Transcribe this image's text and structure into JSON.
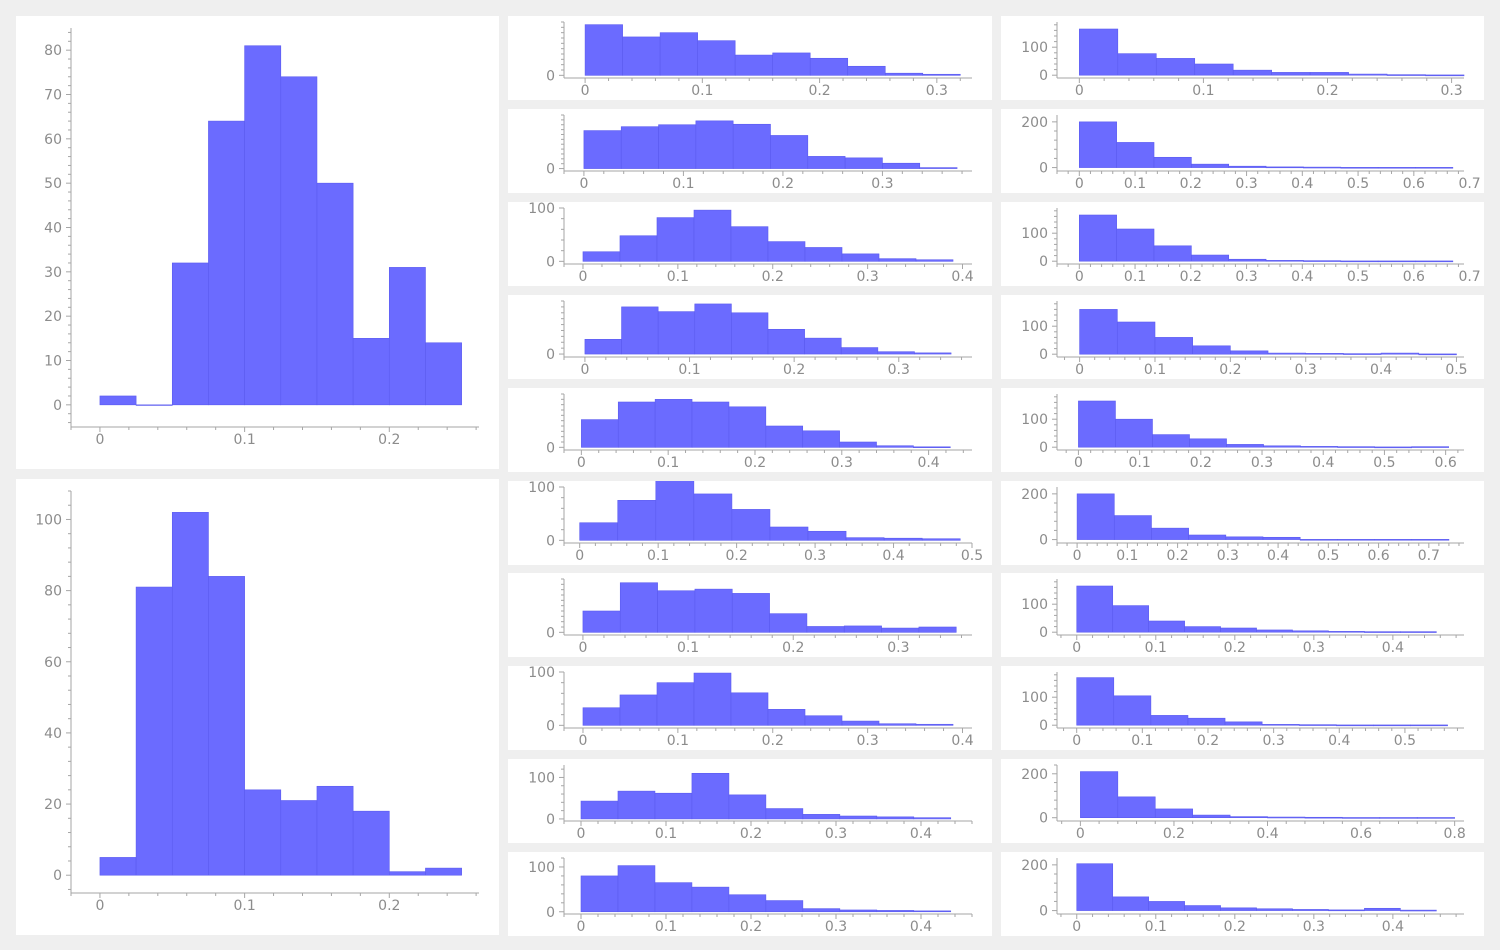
{
  "colors": {
    "background": "#efefef",
    "panel": "#ffffff",
    "bar_fill": "#6b6bff",
    "bar_stroke": "#5b5bef",
    "axis": "#a6a6a6",
    "tick_label": "#8c8c8c"
  },
  "chart_data": [
    {
      "id": "big-top",
      "type": "bar",
      "bin_width": 0.025,
      "xlim": [
        -0.02,
        0.262
      ],
      "ylim": [
        -5,
        85
      ],
      "x_ticks": [
        {
          "v": 0,
          "l": "0"
        },
        {
          "v": 0.1,
          "l": "0.1"
        },
        {
          "v": 0.2,
          "l": "0.2"
        }
      ],
      "y_ticks": [
        {
          "v": 0,
          "l": "0"
        },
        {
          "v": 10,
          "l": "10"
        },
        {
          "v": 20,
          "l": "20"
        },
        {
          "v": 30,
          "l": "30"
        },
        {
          "v": 40,
          "l": "40"
        },
        {
          "v": 50,
          "l": "50"
        },
        {
          "v": 60,
          "l": "60"
        },
        {
          "v": 70,
          "l": "70"
        },
        {
          "v": 80,
          "l": "80"
        }
      ],
      "values": [
        2,
        0,
        32,
        64,
        81,
        74,
        50,
        15,
        31,
        14
      ]
    },
    {
      "id": "big-bottom",
      "type": "bar",
      "bin_width": 0.025,
      "xlim": [
        -0.02,
        0.262
      ],
      "ylim": [
        -5,
        108
      ],
      "x_ticks": [
        {
          "v": 0,
          "l": "0"
        },
        {
          "v": 0.1,
          "l": "0.1"
        },
        {
          "v": 0.2,
          "l": "0.2"
        }
      ],
      "y_ticks": [
        {
          "v": 0,
          "l": "0"
        },
        {
          "v": 20,
          "l": "20"
        },
        {
          "v": 40,
          "l": "40"
        },
        {
          "v": 60,
          "l": "60"
        },
        {
          "v": 80,
          "l": "80"
        },
        {
          "v": 100,
          "l": "100"
        }
      ],
      "values": [
        5,
        81,
        102,
        84,
        24,
        21,
        25,
        18,
        1,
        2
      ]
    },
    {
      "id": "mid-1",
      "type": "bar",
      "bin_width": 0.032,
      "xlim": [
        -0.018,
        0.33
      ],
      "ylim": [
        -5,
        100
      ],
      "x_ticks": [
        {
          "v": 0,
          "l": "0"
        },
        {
          "v": 0.1,
          "l": "0.1"
        },
        {
          "v": 0.2,
          "l": "0.2"
        },
        {
          "v": 0.3,
          "l": "0.3"
        }
      ],
      "y_ticks": [
        {
          "v": 0,
          "l": "0"
        }
      ],
      "values": [
        95,
        72,
        80,
        65,
        38,
        42,
        32,
        17,
        4,
        2
      ]
    },
    {
      "id": "mid-2",
      "type": "bar",
      "bin_width": 0.0375,
      "xlim": [
        -0.02,
        0.39
      ],
      "ylim": [
        -5,
        110
      ],
      "x_ticks": [
        {
          "v": 0,
          "l": "0"
        },
        {
          "v": 0.1,
          "l": "0.1"
        },
        {
          "v": 0.2,
          "l": "0.2"
        },
        {
          "v": 0.3,
          "l": "0.3"
        }
      ],
      "y_ticks": [
        {
          "v": 0,
          "l": "0"
        }
      ],
      "values": [
        78,
        86,
        90,
        98,
        91,
        68,
        25,
        22,
        11,
        2
      ]
    },
    {
      "id": "mid-3",
      "type": "bar",
      "bin_width": 0.039,
      "xlim": [
        -0.02,
        0.41
      ],
      "ylim": [
        -5,
        100
      ],
      "x_ticks": [
        {
          "v": 0,
          "l": "0"
        },
        {
          "v": 0.1,
          "l": "0.1"
        },
        {
          "v": 0.2,
          "l": "0.2"
        },
        {
          "v": 0.3,
          "l": "0.3"
        },
        {
          "v": 0.4,
          "l": "0.4"
        }
      ],
      "y_ticks": [
        {
          "v": 0,
          "l": "0"
        },
        {
          "v": 100,
          "l": "100"
        }
      ],
      "values": [
        18,
        48,
        82,
        96,
        65,
        37,
        26,
        14,
        5,
        3
      ]
    },
    {
      "id": "mid-4",
      "type": "bar",
      "bin_width": 0.035,
      "xlim": [
        -0.02,
        0.37
      ],
      "ylim": [
        -5,
        90
      ],
      "x_ticks": [
        {
          "v": 0,
          "l": "0"
        },
        {
          "v": 0.1,
          "l": "0.1"
        },
        {
          "v": 0.2,
          "l": "0.2"
        },
        {
          "v": 0.3,
          "l": "0.3"
        }
      ],
      "y_ticks": [
        {
          "v": 0,
          "l": "0"
        }
      ],
      "values": [
        25,
        80,
        72,
        85,
        70,
        42,
        27,
        11,
        4,
        2
      ]
    },
    {
      "id": "mid-5",
      "type": "bar",
      "bin_width": 0.0425,
      "xlim": [
        -0.02,
        0.45
      ],
      "ylim": [
        -5,
        100
      ],
      "x_ticks": [
        {
          "v": 0,
          "l": "0"
        },
        {
          "v": 0.1,
          "l": "0.1"
        },
        {
          "v": 0.2,
          "l": "0.2"
        },
        {
          "v": 0.3,
          "l": "0.3"
        },
        {
          "v": 0.4,
          "l": "0.4"
        }
      ],
      "y_ticks": [
        {
          "v": 0,
          "l": "0"
        }
      ],
      "values": [
        52,
        85,
        90,
        85,
        76,
        40,
        31,
        10,
        3,
        1
      ]
    },
    {
      "id": "mid-6",
      "type": "bar",
      "bin_width": 0.0485,
      "xlim": [
        -0.02,
        0.5
      ],
      "ylim": [
        -5,
        100
      ],
      "x_ticks": [
        {
          "v": 0,
          "l": "0"
        },
        {
          "v": 0.1,
          "l": "0.1"
        },
        {
          "v": 0.2,
          "l": "0.2"
        },
        {
          "v": 0.3,
          "l": "0.3"
        },
        {
          "v": 0.4,
          "l": "0.4"
        },
        {
          "v": 0.5,
          "l": "0.5"
        }
      ],
      "y_ticks": [
        {
          "v": 0,
          "l": "0"
        },
        {
          "v": 100,
          "l": "100"
        }
      ],
      "values": [
        33,
        75,
        112,
        87,
        58,
        25,
        17,
        5,
        4,
        3
      ]
    },
    {
      "id": "mid-7",
      "type": "bar",
      "bin_width": 0.0355,
      "xlim": [
        -0.018,
        0.37
      ],
      "ylim": [
        -5,
        100
      ],
      "x_ticks": [
        {
          "v": 0,
          "l": "0"
        },
        {
          "v": 0.1,
          "l": "0.1"
        },
        {
          "v": 0.2,
          "l": "0.2"
        },
        {
          "v": 0.3,
          "l": "0.3"
        }
      ],
      "y_ticks": [
        {
          "v": 0,
          "l": "0"
        }
      ],
      "values": [
        40,
        93,
        78,
        81,
        73,
        35,
        11,
        12,
        8,
        10
      ]
    },
    {
      "id": "mid-8",
      "type": "bar",
      "bin_width": 0.039,
      "xlim": [
        -0.02,
        0.41
      ],
      "ylim": [
        -5,
        100
      ],
      "x_ticks": [
        {
          "v": 0,
          "l": "0"
        },
        {
          "v": 0.1,
          "l": "0.1"
        },
        {
          "v": 0.2,
          "l": "0.2"
        },
        {
          "v": 0.3,
          "l": "0.3"
        },
        {
          "v": 0.4,
          "l": "0.4"
        }
      ],
      "y_ticks": [
        {
          "v": 0,
          "l": "0"
        },
        {
          "v": 100,
          "l": "100"
        }
      ],
      "values": [
        33,
        57,
        80,
        98,
        61,
        30,
        18,
        8,
        3,
        2
      ]
    },
    {
      "id": "mid-9",
      "type": "bar",
      "bin_width": 0.0435,
      "xlim": [
        -0.02,
        0.46
      ],
      "ylim": [
        -5,
        130
      ],
      "x_ticks": [
        {
          "v": 0,
          "l": "0"
        },
        {
          "v": 0.1,
          "l": "0.1"
        },
        {
          "v": 0.2,
          "l": "0.2"
        },
        {
          "v": 0.3,
          "l": "0.3"
        },
        {
          "v": 0.4,
          "l": "0.4"
        }
      ],
      "y_ticks": [
        {
          "v": 0,
          "l": "0"
        },
        {
          "v": 100,
          "l": "100"
        }
      ],
      "values": [
        43,
        67,
        62,
        110,
        58,
        25,
        11,
        7,
        5,
        3
      ]
    },
    {
      "id": "mid-10",
      "type": "bar",
      "bin_width": 0.0435,
      "xlim": [
        -0.02,
        0.46
      ],
      "ylim": [
        -5,
        120
      ],
      "x_ticks": [
        {
          "v": 0,
          "l": "0"
        },
        {
          "v": 0.1,
          "l": "0.1"
        },
        {
          "v": 0.2,
          "l": "0.2"
        },
        {
          "v": 0.3,
          "l": "0.3"
        },
        {
          "v": 0.4,
          "l": "0.4"
        }
      ],
      "y_ticks": [
        {
          "v": 0,
          "l": "0"
        },
        {
          "v": 100,
          "l": "100"
        }
      ],
      "values": [
        80,
        103,
        65,
        55,
        38,
        25,
        7,
        4,
        3,
        2
      ]
    },
    {
      "id": "right-1",
      "type": "bar",
      "bin_width": 0.031,
      "xlim": [
        -0.018,
        0.31
      ],
      "ylim": [
        -10,
        190
      ],
      "x_ticks": [
        {
          "v": 0,
          "l": "0"
        },
        {
          "v": 0.1,
          "l": "0.1"
        },
        {
          "v": 0.2,
          "l": "0.2"
        },
        {
          "v": 0.3,
          "l": "0.3"
        }
      ],
      "y_ticks": [
        {
          "v": 0,
          "l": "0"
        },
        {
          "v": 100,
          "l": "100"
        }
      ],
      "values": [
        165,
        77,
        60,
        40,
        18,
        10,
        10,
        4,
        2,
        1
      ]
    },
    {
      "id": "right-2",
      "type": "bar",
      "bin_width": 0.067,
      "xlim": [
        -0.04,
        0.69
      ],
      "ylim": [
        -15,
        230
      ],
      "x_ticks": [
        {
          "v": 0,
          "l": "0"
        },
        {
          "v": 0.1,
          "l": "0.1"
        },
        {
          "v": 0.2,
          "l": "0.2"
        },
        {
          "v": 0.3,
          "l": "0.3"
        },
        {
          "v": 0.4,
          "l": "0.4"
        },
        {
          "v": 0.5,
          "l": "0.5"
        },
        {
          "v": 0.6,
          "l": "0.6"
        },
        {
          "v": 0.7,
          "l": "0.7"
        }
      ],
      "y_ticks": [
        {
          "v": 0,
          "l": "0"
        },
        {
          "v": 200,
          "l": "200"
        }
      ],
      "values": [
        200,
        110,
        45,
        15,
        6,
        3,
        2,
        1,
        1,
        1
      ]
    },
    {
      "id": "right-3",
      "type": "bar",
      "bin_width": 0.067,
      "xlim": [
        -0.04,
        0.69
      ],
      "ylim": [
        -10,
        190
      ],
      "x_ticks": [
        {
          "v": 0,
          "l": "0"
        },
        {
          "v": 0.1,
          "l": "0.1"
        },
        {
          "v": 0.2,
          "l": "0.2"
        },
        {
          "v": 0.3,
          "l": "0.3"
        },
        {
          "v": 0.4,
          "l": "0.4"
        },
        {
          "v": 0.5,
          "l": "0.5"
        },
        {
          "v": 0.6,
          "l": "0.6"
        },
        {
          "v": 0.7,
          "l": "0.7"
        }
      ],
      "y_ticks": [
        {
          "v": 0,
          "l": "0"
        },
        {
          "v": 100,
          "l": "100"
        }
      ],
      "values": [
        165,
        115,
        55,
        22,
        7,
        3,
        2,
        1,
        1,
        1
      ]
    },
    {
      "id": "right-4",
      "type": "bar",
      "bin_width": 0.05,
      "xlim": [
        -0.03,
        0.51
      ],
      "ylim": [
        -10,
        190
      ],
      "x_ticks": [
        {
          "v": 0,
          "l": "0"
        },
        {
          "v": 0.1,
          "l": "0.1"
        },
        {
          "v": 0.2,
          "l": "0.2"
        },
        {
          "v": 0.3,
          "l": "0.3"
        },
        {
          "v": 0.4,
          "l": "0.4"
        },
        {
          "v": 0.5,
          "l": "0.5"
        }
      ],
      "y_ticks": [
        {
          "v": 0,
          "l": "0"
        },
        {
          "v": 100,
          "l": "100"
        }
      ],
      "values": [
        160,
        115,
        60,
        30,
        12,
        4,
        3,
        2,
        4,
        1
      ]
    },
    {
      "id": "right-5",
      "type": "bar",
      "bin_width": 0.0605,
      "xlim": [
        -0.035,
        0.63
      ],
      "ylim": [
        -10,
        190
      ],
      "x_ticks": [
        {
          "v": 0,
          "l": "0"
        },
        {
          "v": 0.1,
          "l": "0.1"
        },
        {
          "v": 0.2,
          "l": "0.2"
        },
        {
          "v": 0.3,
          "l": "0.3"
        },
        {
          "v": 0.4,
          "l": "0.4"
        },
        {
          "v": 0.5,
          "l": "0.5"
        },
        {
          "v": 0.6,
          "l": "0.6"
        }
      ],
      "y_ticks": [
        {
          "v": 0,
          "l": "0"
        },
        {
          "v": 100,
          "l": "100"
        }
      ],
      "values": [
        165,
        100,
        45,
        30,
        10,
        5,
        3,
        2,
        1,
        2
      ]
    },
    {
      "id": "right-6",
      "type": "bar",
      "bin_width": 0.074,
      "xlim": [
        -0.04,
        0.77
      ],
      "ylim": [
        -15,
        230
      ],
      "x_ticks": [
        {
          "v": 0,
          "l": "0"
        },
        {
          "v": 0.1,
          "l": "0.1"
        },
        {
          "v": 0.2,
          "l": "0.2"
        },
        {
          "v": 0.3,
          "l": "0.3"
        },
        {
          "v": 0.4,
          "l": "0.4"
        },
        {
          "v": 0.5,
          "l": "0.5"
        },
        {
          "v": 0.6,
          "l": "0.6"
        },
        {
          "v": 0.7,
          "l": "0.7"
        }
      ],
      "y_ticks": [
        {
          "v": 0,
          "l": "0"
        },
        {
          "v": 200,
          "l": "200"
        }
      ],
      "values": [
        200,
        105,
        50,
        20,
        12,
        10,
        1,
        1,
        1,
        1
      ]
    },
    {
      "id": "right-7",
      "type": "bar",
      "bin_width": 0.0455,
      "xlim": [
        -0.025,
        0.49
      ],
      "ylim": [
        -10,
        190
      ],
      "x_ticks": [
        {
          "v": 0,
          "l": "0"
        },
        {
          "v": 0.1,
          "l": "0.1"
        },
        {
          "v": 0.2,
          "l": "0.2"
        },
        {
          "v": 0.3,
          "l": "0.3"
        },
        {
          "v": 0.4,
          "l": "0.4"
        }
      ],
      "y_ticks": [
        {
          "v": 0,
          "l": "0"
        },
        {
          "v": 100,
          "l": "100"
        }
      ],
      "values": [
        165,
        95,
        40,
        20,
        15,
        8,
        5,
        3,
        2,
        2
      ]
    },
    {
      "id": "right-8",
      "type": "bar",
      "bin_width": 0.0565,
      "xlim": [
        -0.03,
        0.59
      ],
      "ylim": [
        -10,
        190
      ],
      "x_ticks": [
        {
          "v": 0,
          "l": "0"
        },
        {
          "v": 0.1,
          "l": "0.1"
        },
        {
          "v": 0.2,
          "l": "0.2"
        },
        {
          "v": 0.3,
          "l": "0.3"
        },
        {
          "v": 0.4,
          "l": "0.4"
        },
        {
          "v": 0.5,
          "l": "0.5"
        }
      ],
      "y_ticks": [
        {
          "v": 0,
          "l": "0"
        },
        {
          "v": 100,
          "l": "100"
        }
      ],
      "values": [
        170,
        105,
        35,
        25,
        12,
        3,
        2,
        1,
        1,
        1
      ]
    },
    {
      "id": "right-9",
      "type": "bar",
      "bin_width": 0.08,
      "xlim": [
        -0.05,
        0.82
      ],
      "ylim": [
        -15,
        240
      ],
      "x_ticks": [
        {
          "v": 0,
          "l": "0"
        },
        {
          "v": 0.2,
          "l": "0.2"
        },
        {
          "v": 0.4,
          "l": "0.4"
        },
        {
          "v": 0.6,
          "l": "0.6"
        },
        {
          "v": 0.8,
          "l": "0.8"
        }
      ],
      "y_ticks": [
        {
          "v": 0,
          "l": "0"
        },
        {
          "v": 200,
          "l": "200"
        }
      ],
      "values": [
        210,
        95,
        40,
        12,
        5,
        3,
        2,
        1,
        1,
        1
      ]
    },
    {
      "id": "right-10",
      "type": "bar",
      "bin_width": 0.0455,
      "xlim": [
        -0.025,
        0.49
      ],
      "ylim": [
        -15,
        230
      ],
      "x_ticks": [
        {
          "v": 0,
          "l": "0"
        },
        {
          "v": 0.1,
          "l": "0.1"
        },
        {
          "v": 0.2,
          "l": "0.2"
        },
        {
          "v": 0.3,
          "l": "0.3"
        },
        {
          "v": 0.4,
          "l": "0.4"
        }
      ],
      "y_ticks": [
        {
          "v": 0,
          "l": "0"
        },
        {
          "v": 200,
          "l": "200"
        }
      ],
      "values": [
        205,
        60,
        40,
        22,
        12,
        8,
        5,
        3,
        10,
        2
      ]
    }
  ]
}
